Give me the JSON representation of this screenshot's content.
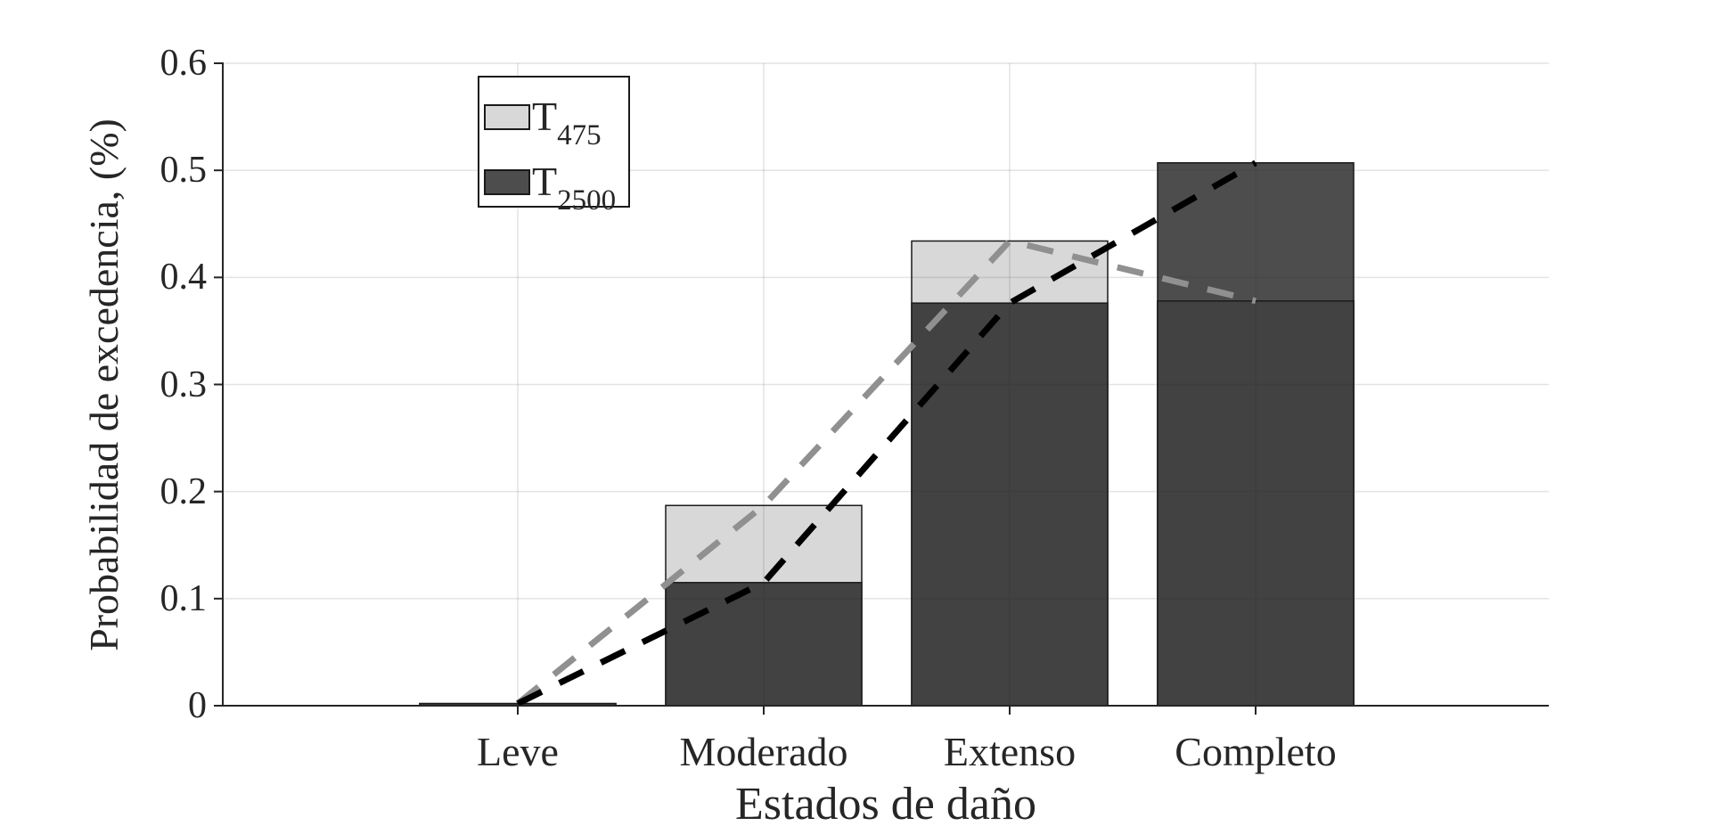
{
  "figure": {
    "ylabel": "Probabilidad de excedencia, (%)",
    "xlabel": "Estados de daño"
  },
  "legend": {
    "entries": [
      {
        "label_main": "T",
        "label_sub": "475"
      },
      {
        "label_main": "T",
        "label_sub": "2500"
      }
    ]
  },
  "chart_data": {
    "type": "bar",
    "subtype": "overlapped bars with dashed trend lines",
    "categories": [
      "Leve",
      "Moderado",
      "Extenso",
      "Completo"
    ],
    "series": [
      {
        "name": "T475",
        "label_main": "T",
        "label_sub": "475",
        "values": [
          0.002,
          0.187,
          0.434,
          0.378
        ],
        "bar_color": "#d8d8d8",
        "line_color": "#909090",
        "line_style": "dashed"
      },
      {
        "name": "T2500",
        "label_main": "T",
        "label_sub": "2500",
        "values": [
          0.002,
          0.115,
          0.376,
          0.507
        ],
        "bar_color": "#424242",
        "bar_color_solo": "#4d4d4d",
        "line_color": "#000000",
        "line_style": "dashed"
      }
    ],
    "ylim": [
      0,
      0.6
    ],
    "yticks": [
      0,
      0.1,
      0.2,
      0.3,
      0.4,
      0.5,
      0.6
    ],
    "ytick_labels": [
      "0",
      "0.1",
      "0.2",
      "0.3",
      "0.4",
      "0.5",
      "0.6"
    ],
    "grid": true,
    "legend_position": "top-left-inside"
  },
  "colors": {
    "bar_light": "#d8d8d8",
    "bar_dark_overlap": "#424242",
    "bar_dark_solo": "#4d4d4d",
    "bar_edge": "#1a1a1a",
    "dash_gray": "#909090",
    "dash_black": "#000000",
    "axis": "#262626",
    "grid_rgba": "rgba(38,38,38,0.13)",
    "text": "#262626",
    "background": "#ffffff"
  }
}
